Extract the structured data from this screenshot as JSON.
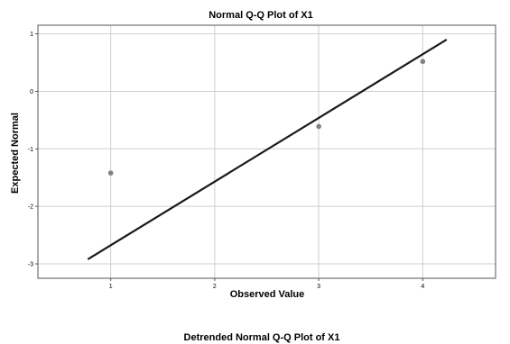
{
  "chart_data": [
    {
      "type": "scatter",
      "title": "Normal Q-Q Plot of X1",
      "xlabel": "Observed Value",
      "ylabel": "Expected Normal",
      "xlim": [
        0.3,
        4.7
      ],
      "ylim": [
        -3.25,
        1.15
      ],
      "x_ticks": [
        1,
        2,
        3,
        4
      ],
      "y_ticks": [
        1,
        0,
        -1,
        -2,
        -3
      ],
      "grid": true,
      "points": [
        {
          "x": 1,
          "y": -1.42
        },
        {
          "x": 3,
          "y": -0.61
        },
        {
          "x": 4,
          "y": 0.52
        }
      ],
      "reference_line": [
        {
          "x": 0.78,
          "y": -2.92
        },
        {
          "x": 4.23,
          "y": 0.9
        }
      ],
      "colors": {
        "points": "#808080",
        "line": "#1a1a1a",
        "grid": "#cfcfcf",
        "frame": "#555555"
      }
    },
    {
      "type": "scatter",
      "title": "Detrended Normal Q-Q Plot of X1"
    }
  ]
}
